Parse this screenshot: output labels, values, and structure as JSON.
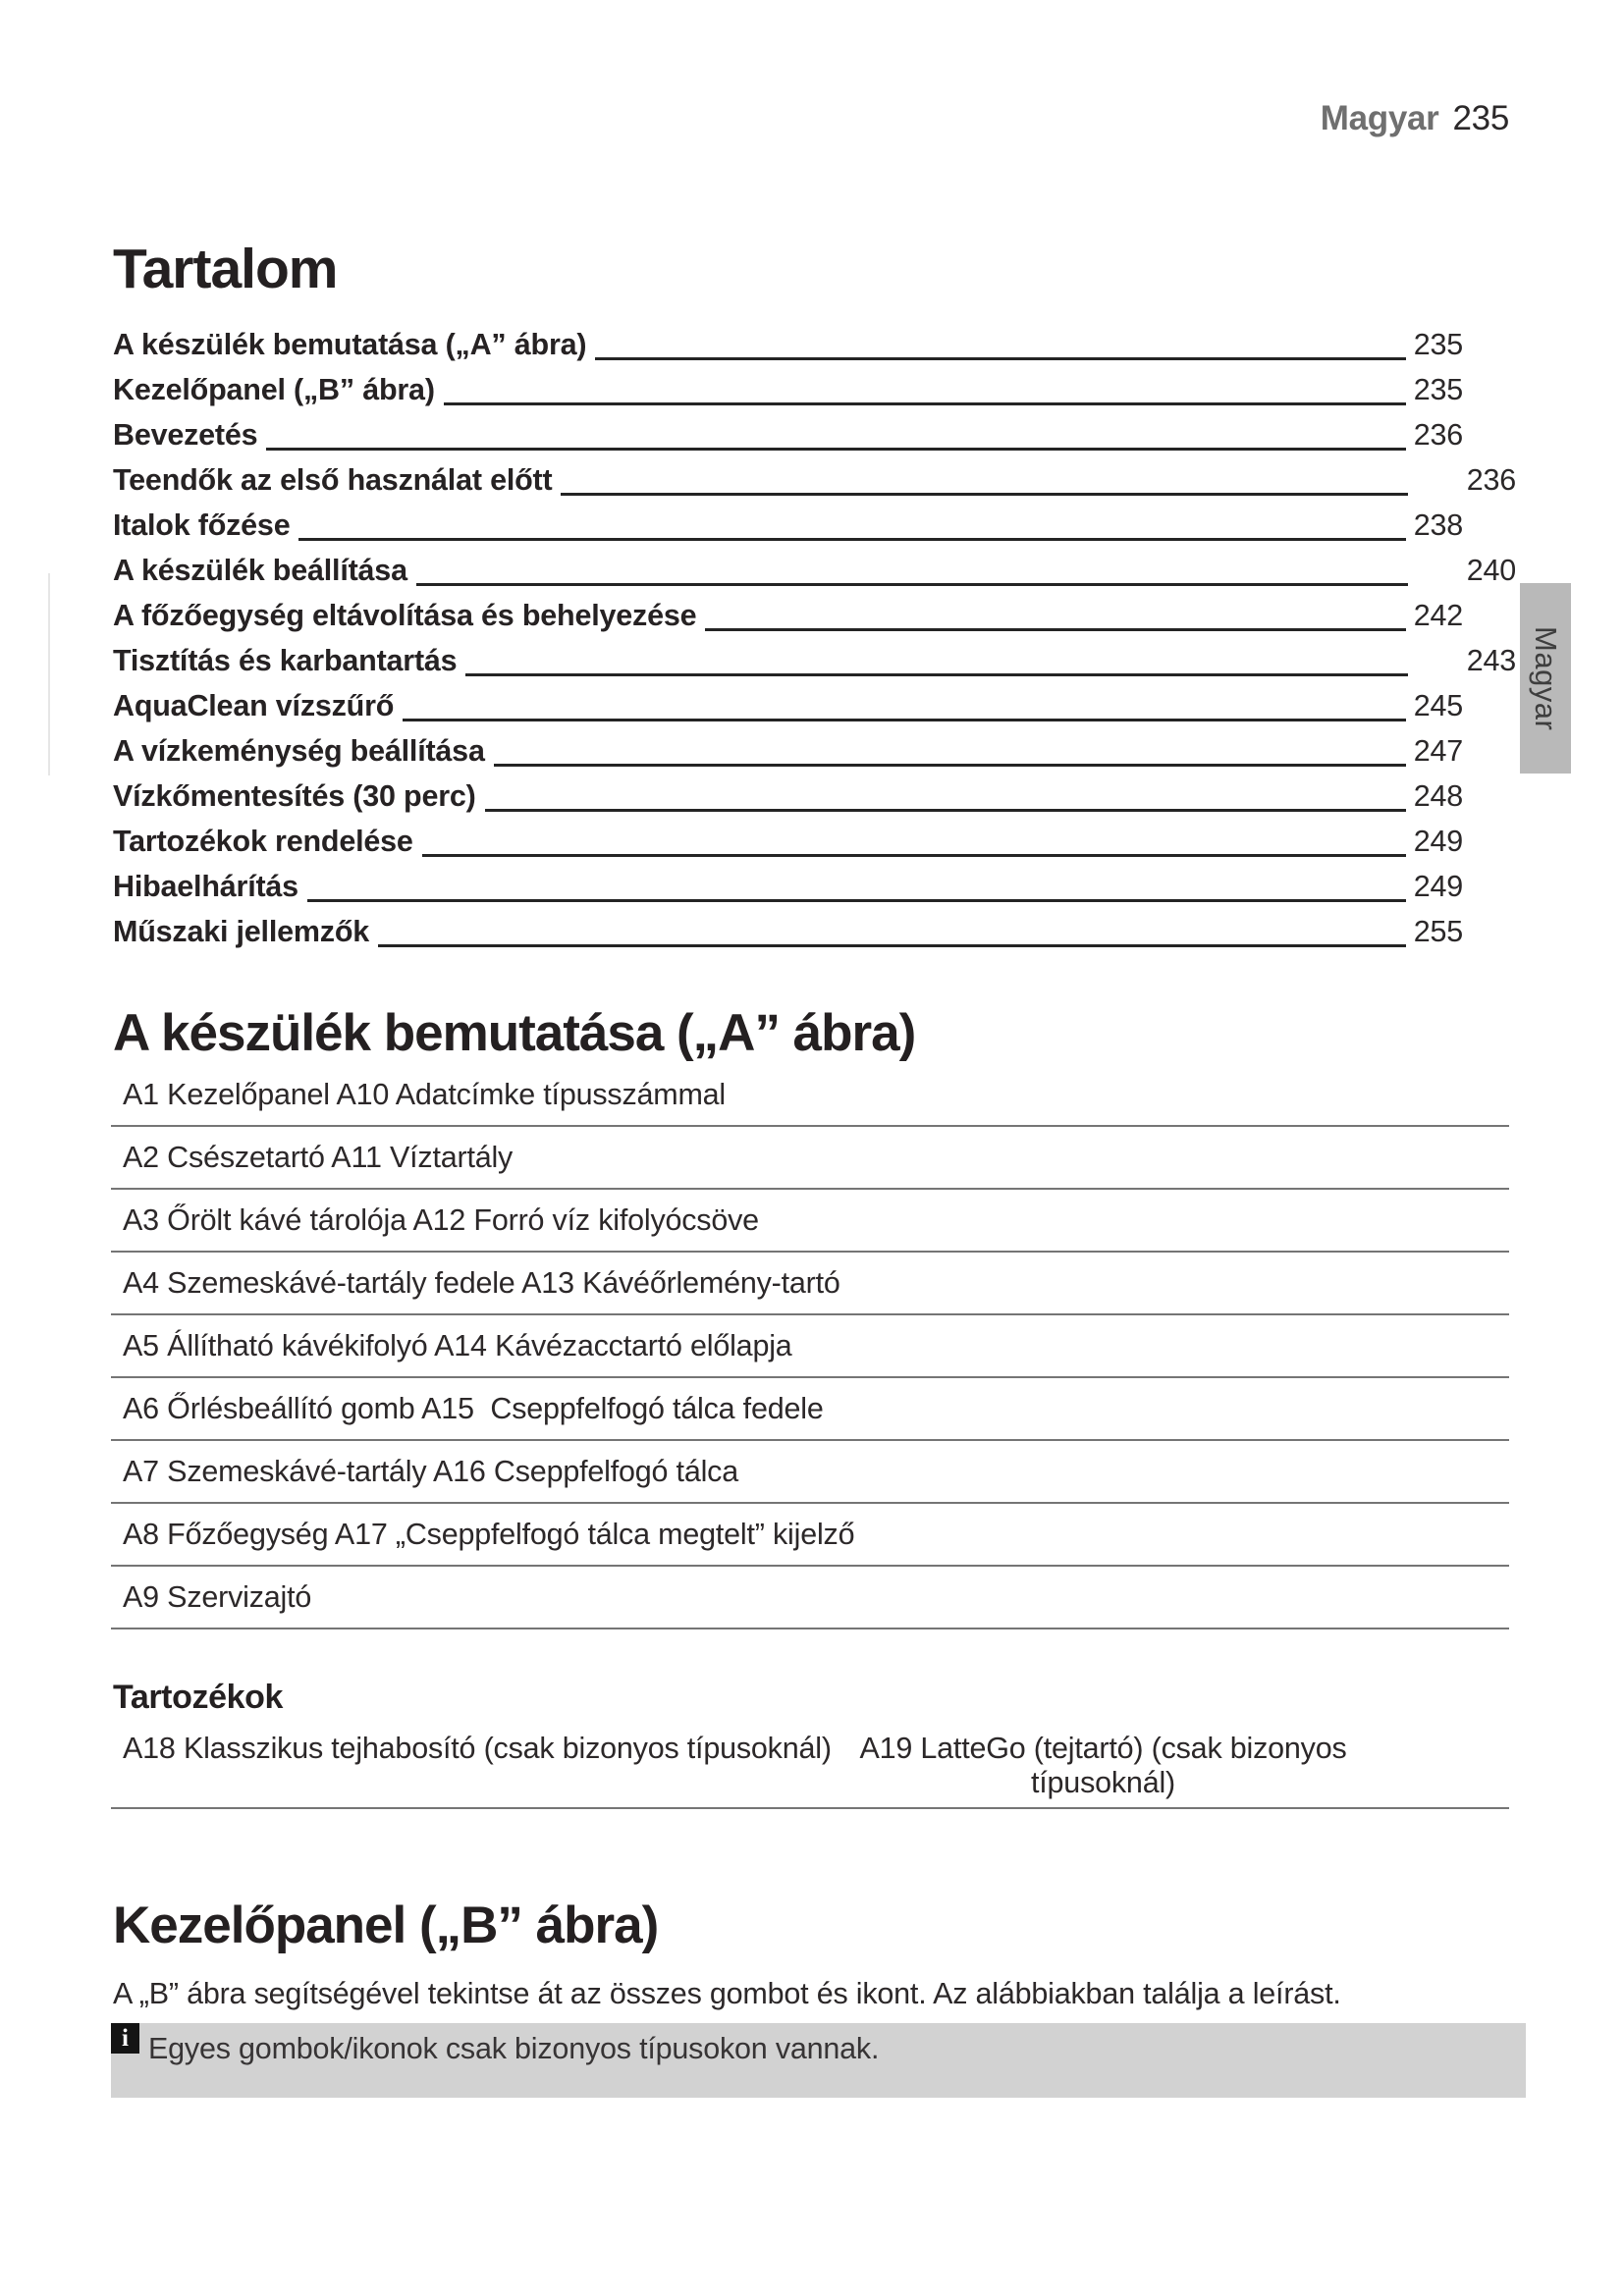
{
  "header": {
    "language": "Magyar",
    "page_number": "235"
  },
  "side_tab": {
    "label": "Magyar"
  },
  "toc": {
    "title": "Tartalom",
    "entries": [
      {
        "label": "A készülék bemutatása („A” ábra)",
        "page": "235"
      },
      {
        "label": "Kezelőpanel („B” ábra)",
        "page": "235"
      },
      {
        "label": "Bevezetés",
        "page": "236"
      },
      {
        "label": "Teendők az első használat előtt",
        "page": "236"
      },
      {
        "label": "Italok főzése",
        "page": "238"
      },
      {
        "label": "A készülék beállítása",
        "page": "240"
      },
      {
        "label": "A főzőegység eltávolítása és behelyezése",
        "page": "242"
      },
      {
        "label": "Tisztítás és karbantartás",
        "page": "243"
      },
      {
        "label": "AquaClean vízszűrő",
        "page": "245"
      },
      {
        "label": "A vízkeménység beállítása",
        "page": "247"
      },
      {
        "label": "Vízkőmentesítés (30 perc)",
        "page": "248"
      },
      {
        "label": "Tartozékok rendelése",
        "page": "249"
      },
      {
        "label": "Hibaelhárítás",
        "page": "249"
      },
      {
        "label": "Műszaki jellemzők",
        "page": "255"
      }
    ]
  },
  "device_section": {
    "title": "A készülék bemutatása („A” ábra)",
    "rows": [
      "A1 Kezelőpanel A10 Adatcímke típusszámmal",
      "A2 Csészetartó A11 Víztartály",
      "A3 Őrölt kávé tárolója A12 Forró víz kifolyócsöve",
      "A4 Szemeskávé-tartály fedele A13 Kávéőrlemény-tartó",
      "A5 Állítható kávékifolyó A14 Kávézacctartó előlapja",
      "A6 Őrlésbeállító gomb A15  Cseppfelfogó tálca fedele",
      "A7 Szemeskávé-tartály A16 Cseppfelfogó tálca",
      "A8 Főzőegység A17 „Cseppfelfogó tálca megtelt” kijelző",
      "A9 Szervizajtó"
    ],
    "accessories": {
      "title": "Tartozékok",
      "left": "A18 Klasszikus tejhabosító (csak bizonyos típusoknál)",
      "right": "A19 LatteGo (tejtartó) (csak bizonyos típusoknál)"
    }
  },
  "panel_section": {
    "title": "Kezelőpanel („B” ábra)",
    "intro": "A „B” ábra segítségével tekintse át az összes gombot és ikont. Az alábbiakban találja a leírást.",
    "note": {
      "icon": "i",
      "text": "Egyes gombok/ikonok csak bizonyos típusokon vannak."
    }
  },
  "colors": {
    "note_bg": "#d2d2d2",
    "tab_bg": "#b9b9b9",
    "rule": "#757575"
  }
}
